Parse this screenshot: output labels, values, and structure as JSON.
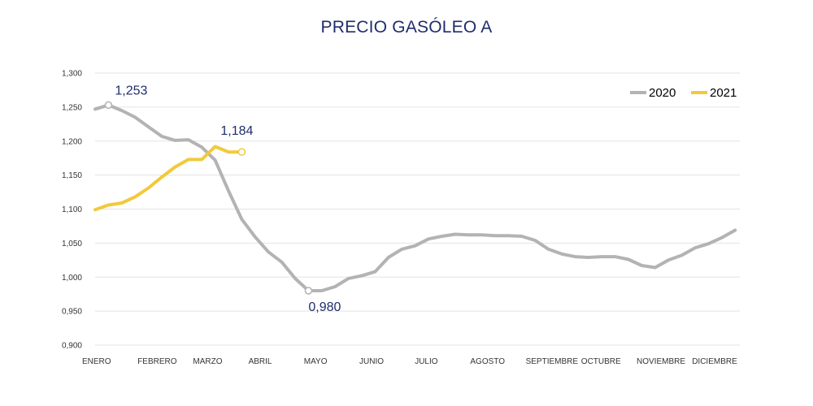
{
  "chart_data": {
    "type": "line",
    "title": "PRECIO GASÓLEO A",
    "ylim": [
      0.9,
      1.3
    ],
    "yticks": [
      "0,900",
      "0,950",
      "1,000",
      "1,050",
      "1,100",
      "1,150",
      "1,200",
      "1,250",
      "1,300"
    ],
    "month_labels": [
      "ENERO",
      "FEBRERO",
      "MARZO",
      "ABRIL",
      "MAYO",
      "JUNIO",
      "JULIO",
      "AGOSTO",
      "SEPTIEMBRE",
      "OCTUBRE",
      "NOVIEMBRE",
      "DICIEMBRE"
    ],
    "grid": true,
    "legend_position": "top-right",
    "series": [
      {
        "name": "2020",
        "color": "#b3b3b3",
        "values": [
          1.247,
          1.253,
          1.245,
          1.235,
          1.221,
          1.207,
          1.201,
          1.202,
          1.191,
          1.172,
          1.127,
          1.085,
          1.059,
          1.037,
          1.022,
          0.998,
          0.98,
          0.98,
          0.986,
          0.998,
          1.002,
          1.008,
          1.029,
          1.041,
          1.046,
          1.056,
          1.06,
          1.063,
          1.062,
          1.062,
          1.061,
          1.061,
          1.06,
          1.054,
          1.041,
          1.034,
          1.03,
          1.029,
          1.03,
          1.03,
          1.026,
          1.017,
          1.014,
          1.025,
          1.032,
          1.043,
          1.049,
          1.058,
          1.069
        ]
      },
      {
        "name": "2021",
        "color": "#f2c93c",
        "values": [
          1.099,
          1.106,
          1.109,
          1.118,
          1.131,
          1.147,
          1.162,
          1.173,
          1.173,
          1.192,
          1.184,
          1.184
        ]
      }
    ],
    "annotations": [
      {
        "series": 0,
        "index": 1,
        "label": "1,253",
        "position": "above-right"
      },
      {
        "series": 0,
        "index": 16,
        "label": "0,980",
        "position": "below"
      },
      {
        "series": 1,
        "index": 11,
        "label": "1,184",
        "position": "above"
      }
    ]
  }
}
